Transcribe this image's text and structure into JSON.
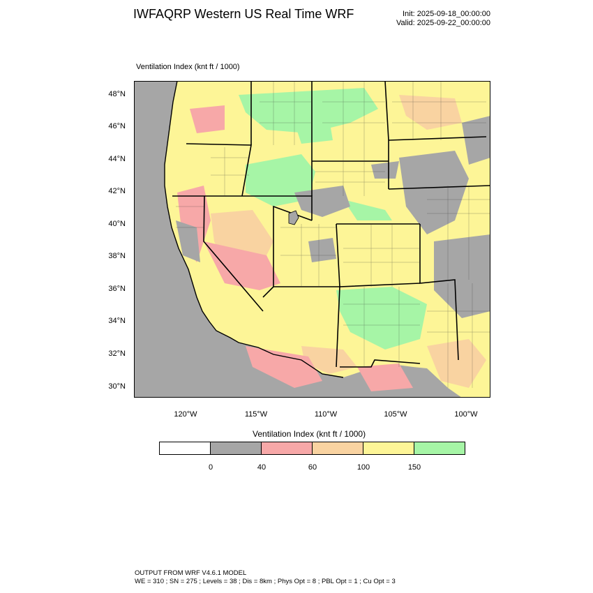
{
  "header": {
    "title": "IWFAQRP Western US Real Time WRF",
    "init": "Init: 2025-09-18_00:00:00",
    "valid": "Valid: 2025-09-22_00:00:00"
  },
  "map": {
    "field_label": "Ventilation Index   (knt ft / 1000)",
    "lat_labels": [
      "48°N",
      "46°N",
      "44°N",
      "42°N",
      "40°N",
      "38°N",
      "36°N",
      "34°N",
      "32°N",
      "30°N"
    ],
    "lon_labels": [
      "120°W",
      "115°W",
      "110°W",
      "105°W",
      "100°W"
    ],
    "colors": {
      "ocean": "#a6a6a6",
      "lt0": "#ffffff",
      "c0_40": "#a6a6a6",
      "c40_60": "#f7a8a8",
      "c60_100": "#f9d3a1",
      "c100_150": "#fdf597",
      "c150_plus": "#a6f5a6"
    }
  },
  "colorbar": {
    "title": "Ventilation Index  (knt ft / 1000)",
    "ticks": [
      "0",
      "40",
      "60",
      "100",
      "150"
    ],
    "colors": [
      "#ffffff",
      "#a6a6a6",
      "#f7a8a8",
      "#f9d3a1",
      "#fdf597",
      "#a6f5a6"
    ]
  },
  "footer": {
    "line1": "OUTPUT FROM WRF V4.6.1 MODEL",
    "line2": "WE = 310 ; SN = 275 ; Levels = 38 ; Dis = 8km ; Phys Opt = 8 ; PBL Opt = 1 ; Cu Opt = 3"
  }
}
